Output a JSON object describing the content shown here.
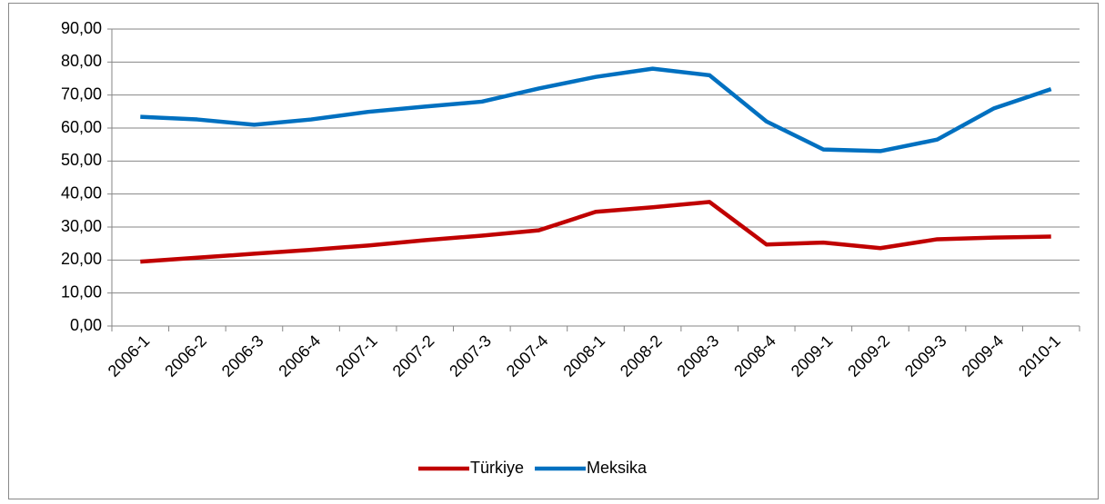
{
  "chart_data": {
    "type": "line",
    "categories": [
      "2006-1",
      "2006-2",
      "2006-3",
      "2006-4",
      "2007-1",
      "2007-2",
      "2007-3",
      "2007-4",
      "2008-1",
      "2008-2",
      "2008-3",
      "2008-4",
      "2009-1",
      "2009-2",
      "2009-3",
      "2009-4",
      "2010-1"
    ],
    "series": [
      {
        "name": "Türkiye",
        "color": "#c00000",
        "values": [
          19.5,
          20.7,
          21.9,
          23.1,
          24.4,
          26.0,
          27.4,
          29.0,
          34.6,
          36.0,
          37.6,
          24.7,
          25.3,
          23.6,
          26.3,
          26.8,
          27.1
        ]
      },
      {
        "name": "Meksika",
        "color": "#0070c0",
        "values": [
          63.4,
          62.6,
          61.0,
          62.6,
          64.9,
          66.5,
          68.0,
          72.0,
          75.5,
          78.0,
          76.0,
          62.0,
          53.5,
          53.0,
          56.5,
          66.0,
          71.8
        ]
      }
    ],
    "ylim": [
      0,
      90
    ],
    "yticks": [
      {
        "value": 0,
        "label": "0,00"
      },
      {
        "value": 10,
        "label": "10,00"
      },
      {
        "value": 20,
        "label": "20,00"
      },
      {
        "value": 30,
        "label": "30,00"
      },
      {
        "value": 40,
        "label": "40,00"
      },
      {
        "value": 50,
        "label": "50,00"
      },
      {
        "value": 60,
        "label": "60,00"
      },
      {
        "value": 70,
        "label": "70,00"
      },
      {
        "value": 80,
        "label": "80,00"
      },
      {
        "value": 90,
        "label": "90,00"
      }
    ],
    "grid": true,
    "legend": "bottom"
  }
}
